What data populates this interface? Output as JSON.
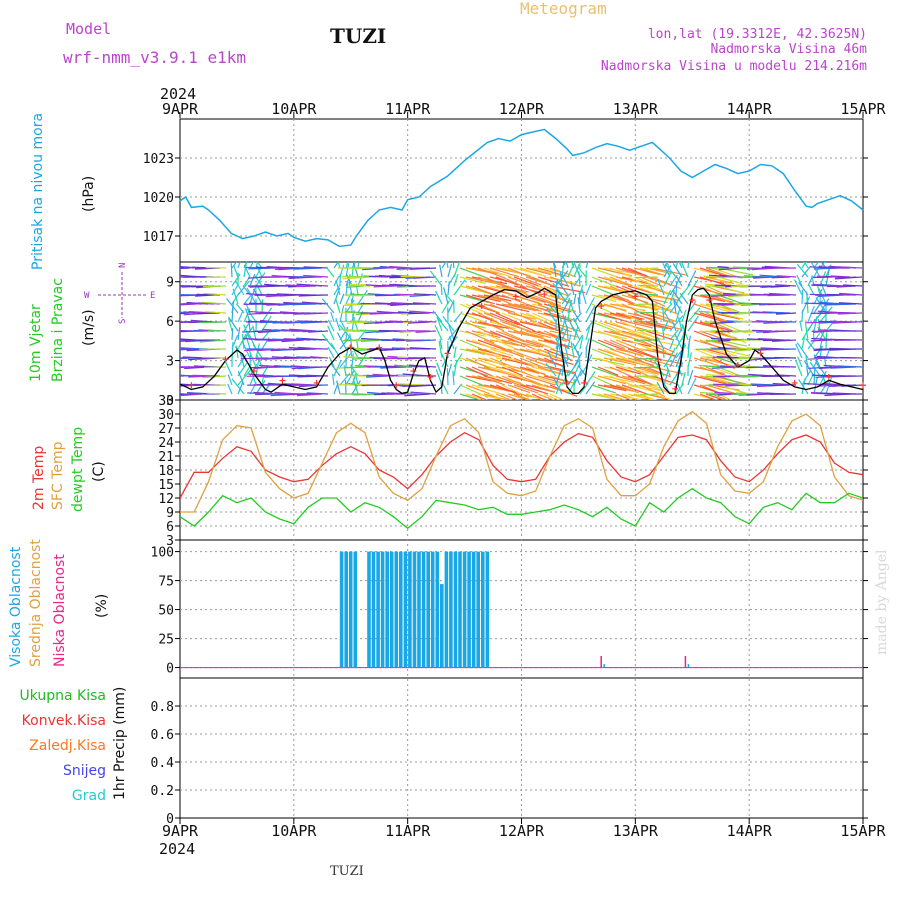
{
  "header": {
    "title": "TUZI",
    "model_label": "Model",
    "model_name": "wrf-nmm_v3.9.1 e1km",
    "meteogram_label": "Meteogram",
    "coords": "lon,lat (19.3312E, 42.3625N)",
    "altitude": "Nadmorska Visina 46m",
    "model_altitude": "Nadmorska Visina u modelu 214.216m",
    "year_top": "2024",
    "year_bottom": "2024",
    "footer_station": "TUZI",
    "watermark": "made by Angel"
  },
  "colors": {
    "pressure": "#1aa7e6",
    "wind_speed": "#000000",
    "gust_marker": "#ff3333",
    "t2m": "#ee3333",
    "sfc_temp": "#e0a040",
    "dewpt": "#22cc22",
    "high_cloud": "#1aa7e6",
    "mid_cloud": "#e0a040",
    "low_cloud": "#ee2288",
    "total_precip": "#22bb22",
    "conv_precip": "#ee3333",
    "frozen_precip": "#ff7722",
    "snow": "#4444ee",
    "hail": "#22cccc",
    "wind_label": "#9933cc"
  },
  "time_axis": {
    "ticks": [
      "9APR",
      "10APR",
      "11APR",
      "12APR",
      "13APR",
      "14APR",
      "15APR"
    ]
  },
  "panels": {
    "pressure": {
      "label1": "Pritisak na nivou mora",
      "unit": "(hPa)"
    },
    "wind": {
      "label1": "10m Vjetar",
      "label2": "Brzina i Pravac",
      "unit": "(m/s)",
      "compass_w": "W",
      "compass_e": "E",
      "compass_n": "N",
      "compass_s": "S"
    },
    "temp": {
      "label1": "2m Temp",
      "label2": "SFC Temp",
      "label3": "dewpt Temp",
      "unit": "(C)"
    },
    "cloud": {
      "label1": "Visoka Oblacnost",
      "label2": "Srednja Oblacnost",
      "label3": "Niska Oblacnost",
      "unit": "(%)"
    },
    "precip": {
      "label1": "Ukupna Kisa",
      "label2": "Konvek.Kisa",
      "label3": "Zaledj.Kisa",
      "label4": "Snijeg",
      "label5": "Grad",
      "unit": "1hr Precip (mm)"
    }
  },
  "chart_data": [
    {
      "type": "line",
      "name": "pressure",
      "ylabel": "Pritisak na nivou mora (hPa)",
      "ylim": [
        1015,
        1026
      ],
      "yticks": [
        1017,
        1020,
        1023
      ],
      "x_days": [
        0,
        0.05,
        0.1,
        0.2,
        0.25,
        0.35,
        0.45,
        0.55,
        0.65,
        0.75,
        0.85,
        0.95,
        1.0,
        1.1,
        1.2,
        1.3,
        1.4,
        1.5,
        1.55,
        1.65,
        1.75,
        1.85,
        1.95,
        2.0,
        2.1,
        2.2,
        2.35,
        2.5,
        2.6,
        2.7,
        2.8,
        2.9,
        3.0,
        3.1,
        3.2,
        3.3,
        3.4,
        3.45,
        3.55,
        3.65,
        3.75,
        3.85,
        3.95,
        4.05,
        4.15,
        4.2,
        4.3,
        4.4,
        4.5,
        4.6,
        4.7,
        4.8,
        4.9,
        5.0,
        5.1,
        5.2,
        5.3,
        5.4,
        5.5,
        5.55,
        5.6,
        5.7,
        5.8,
        5.9,
        6.0
      ],
      "y_hpa": [
        1019.7,
        1020.0,
        1019.2,
        1019.3,
        1019.0,
        1018.2,
        1017.2,
        1016.8,
        1017.0,
        1017.3,
        1017.0,
        1017.2,
        1016.9,
        1016.6,
        1016.8,
        1016.7,
        1016.2,
        1016.3,
        1017.0,
        1018.2,
        1019.0,
        1019.2,
        1019.0,
        1019.8,
        1020.0,
        1020.8,
        1021.6,
        1022.8,
        1023.5,
        1024.2,
        1024.5,
        1024.3,
        1024.8,
        1025.0,
        1025.2,
        1024.5,
        1023.7,
        1023.2,
        1023.4,
        1023.8,
        1024.1,
        1023.9,
        1023.6,
        1023.9,
        1024.2,
        1023.8,
        1023.0,
        1022.0,
        1021.5,
        1022.0,
        1022.5,
        1022.2,
        1021.8,
        1022.0,
        1022.5,
        1022.4,
        1021.8,
        1020.5,
        1019.3,
        1019.2,
        1019.5,
        1019.8,
        1020.1,
        1019.7,
        1019.0
      ]
    },
    {
      "type": "line",
      "name": "wind",
      "ylabel": "10m Vjetar Brzina i Pravac (m/s)",
      "ylim": [
        0,
        10.5
      ],
      "yticks": [
        0,
        3,
        6,
        9
      ],
      "x_days": [
        0,
        0.1,
        0.2,
        0.3,
        0.4,
        0.5,
        0.55,
        0.65,
        0.75,
        0.8,
        0.9,
        1.0,
        1.1,
        1.2,
        1.3,
        1.4,
        1.5,
        1.6,
        1.7,
        1.75,
        1.8,
        1.85,
        1.9,
        1.95,
        2.0,
        2.05,
        2.1,
        2.15,
        2.2,
        2.25,
        2.3,
        2.35,
        2.45,
        2.55,
        2.65,
        2.75,
        2.85,
        2.95,
        3.05,
        3.15,
        3.2,
        3.3,
        3.35,
        3.4,
        3.45,
        3.5,
        3.55,
        3.6,
        3.65,
        3.7,
        3.8,
        3.9,
        4.0,
        4.1,
        4.15,
        4.2,
        4.25,
        4.3,
        4.35,
        4.4,
        4.45,
        4.5,
        4.55,
        4.6,
        4.65,
        4.7,
        4.8,
        4.9,
        5.0,
        5.05,
        5.1,
        5.2,
        5.3,
        5.4,
        5.5,
        5.6,
        5.7,
        5.8,
        5.9,
        6.0
      ],
      "speed": [
        1.2,
        0.8,
        1.0,
        1.8,
        3.0,
        3.8,
        3.5,
        2.0,
        0.8,
        0.6,
        1.2,
        1.0,
        0.8,
        1.0,
        2.5,
        3.5,
        4.0,
        3.5,
        3.8,
        4.0,
        3.0,
        1.5,
        0.8,
        0.5,
        0.6,
        2.0,
        3.0,
        3.2,
        1.5,
        0.6,
        1.0,
        3.5,
        5.5,
        7.0,
        7.5,
        8.0,
        8.4,
        8.3,
        7.8,
        8.2,
        8.5,
        8.0,
        4.0,
        1.0,
        0.5,
        0.5,
        1.0,
        4.0,
        7.0,
        7.5,
        8.0,
        8.2,
        8.3,
        8.0,
        7.5,
        3.0,
        1.0,
        0.5,
        0.5,
        3.0,
        6.0,
        8.0,
        8.4,
        8.5,
        8.0,
        6.0,
        3.5,
        2.5,
        3.0,
        3.8,
        3.5,
        2.5,
        1.5,
        1.0,
        0.8,
        1.0,
        1.5,
        1.2,
        1.0,
        0.8
      ]
    },
    {
      "type": "line",
      "name": "temperature",
      "ylabel": "Temp (C)",
      "ylim": [
        3,
        33
      ],
      "yticks": [
        3,
        6,
        9,
        12,
        15,
        18,
        21,
        24,
        27,
        30,
        33
      ],
      "x_days": [
        0,
        0.125,
        0.25,
        0.375,
        0.5,
        0.625,
        0.75,
        0.875,
        1.0,
        1.125,
        1.25,
        1.375,
        1.5,
        1.625,
        1.75,
        1.875,
        2.0,
        2.125,
        2.25,
        2.375,
        2.5,
        2.625,
        2.75,
        2.875,
        3.0,
        3.125,
        3.25,
        3.375,
        3.5,
        3.625,
        3.75,
        3.875,
        4.0,
        4.125,
        4.25,
        4.375,
        4.5,
        4.625,
        4.75,
        4.875,
        5.0,
        5.125,
        5.25,
        5.375,
        5.5,
        5.625,
        5.75,
        5.875,
        6.0
      ],
      "series": [
        {
          "name": "2m Temp",
          "values": [
            12.0,
            17.5,
            17.5,
            20.5,
            23.0,
            22.0,
            18.0,
            16.5,
            15.5,
            16.0,
            19.0,
            21.5,
            23.0,
            21.5,
            18.0,
            16.5,
            14.0,
            17.0,
            21.0,
            24.0,
            26.0,
            24.5,
            19.0,
            16.0,
            15.5,
            16.0,
            21.0,
            24.0,
            25.8,
            25.0,
            20.0,
            16.5,
            15.5,
            17.0,
            21.0,
            25.0,
            25.5,
            24.5,
            20.0,
            16.5,
            15.5,
            18.0,
            21.5,
            24.5,
            25.5,
            24.0,
            19.5,
            17.5,
            17.0
          ]
        },
        {
          "name": "SFC Temp",
          "values": [
            9.0,
            9.0,
            15.5,
            24.5,
            27.5,
            27.0,
            17.5,
            14.0,
            12.0,
            13.0,
            19.5,
            26.0,
            28.0,
            26.0,
            16.5,
            13.0,
            11.5,
            14.0,
            21.0,
            27.5,
            29.0,
            26.0,
            15.5,
            13.0,
            12.5,
            13.5,
            21.0,
            27.5,
            29.0,
            27.0,
            16.0,
            12.5,
            12.5,
            15.0,
            23.0,
            28.5,
            30.5,
            28.0,
            17.0,
            13.5,
            13.0,
            15.5,
            23.0,
            28.5,
            30.0,
            27.5,
            16.5,
            12.5,
            11.5
          ]
        },
        {
          "name": "dewpt Temp",
          "values": [
            8.0,
            6.0,
            9.0,
            12.5,
            11.0,
            12.0,
            9.0,
            7.5,
            6.5,
            10.0,
            12.0,
            12.0,
            9.0,
            11.0,
            10.0,
            8.0,
            5.5,
            8.0,
            11.5,
            11.0,
            10.5,
            9.5,
            10.0,
            8.5,
            8.5,
            9.0,
            9.5,
            10.5,
            9.5,
            8.0,
            10.0,
            7.5,
            6.0,
            11.0,
            9.0,
            12.0,
            14.0,
            12.0,
            11.0,
            8.0,
            6.5,
            10.0,
            11.0,
            9.5,
            13.0,
            11.0,
            11.0,
            13.0,
            12.0
          ]
        }
      ]
    },
    {
      "type": "bar",
      "name": "cloud_cover",
      "ylabel": "Oblacnost (%)",
      "ylim": [
        0,
        100
      ],
      "yticks": [
        0,
        25,
        50,
        75,
        100
      ],
      "high_cloud_bars_x_days": [
        1.42,
        1.46,
        1.5,
        1.54,
        1.66,
        1.7,
        1.74,
        1.78,
        1.82,
        1.86,
        1.9,
        1.94,
        1.98,
        2.02,
        2.06,
        2.1,
        2.14,
        2.18,
        2.22,
        2.26,
        2.3,
        2.34,
        2.38,
        2.42,
        2.46,
        2.5,
        2.54,
        2.58,
        2.62,
        2.66,
        2.7
      ],
      "high_cloud_bars_values": [
        100,
        100,
        100,
        100,
        100,
        100,
        100,
        100,
        100,
        100,
        100,
        100,
        100,
        100,
        100,
        100,
        100,
        100,
        100,
        100,
        72,
        100,
        100,
        100,
        100,
        100,
        100,
        100,
        100,
        100,
        100
      ],
      "low_cloud_spikes": [
        {
          "x_day": 3.7,
          "value": 10
        },
        {
          "x_day": 4.44,
          "value": 10
        }
      ]
    },
    {
      "type": "bar",
      "name": "precipitation",
      "ylabel": "1hr Precip (mm)",
      "ylim": [
        0,
        1.0
      ],
      "yticks": [
        0,
        0.2,
        0.4,
        0.6,
        0.8
      ],
      "values": []
    }
  ]
}
